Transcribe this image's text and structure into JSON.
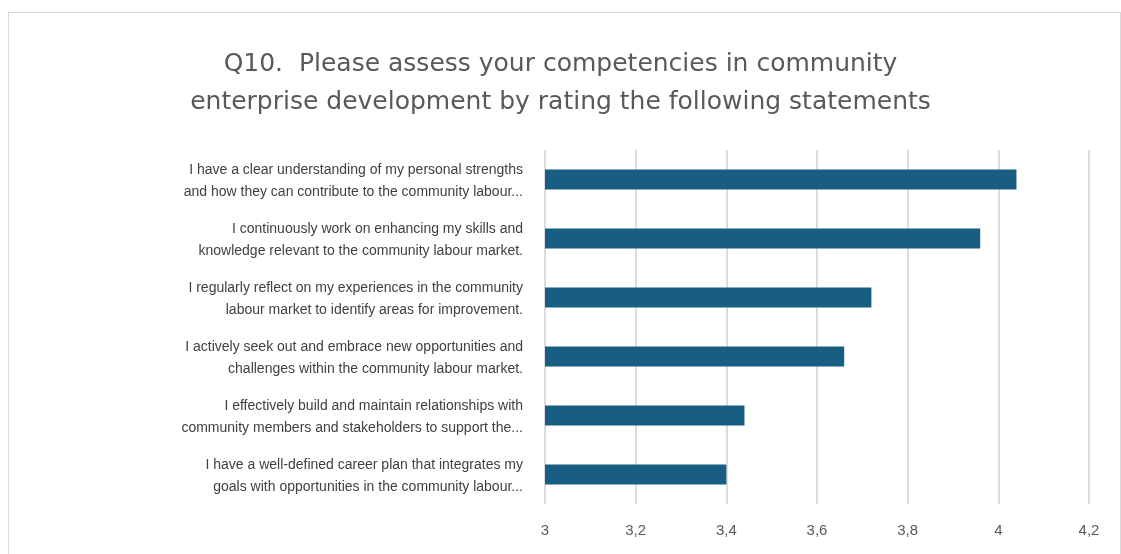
{
  "chart_data": {
    "type": "bar",
    "orientation": "horizontal",
    "title": "Q10.  Please assess your competencies in community\nenterprise development by rating the following statements",
    "categories": [
      "I have a clear understanding of my personal strengths\nand how they can contribute to the community labour...",
      "I continuously work on enhancing my skills and\nknowledge relevant to the community labour market.",
      "I regularly reflect on my experiences in the community\nlabour market to identify areas for improvement.",
      "I actively seek out and embrace new opportunities and\nchallenges within the community labour market.",
      "I effectively build and maintain relationships with\ncommunity members and stakeholders to support the...",
      "I have a well-defined career plan that integrates my\ngoals with opportunities in the community labour..."
    ],
    "values": [
      4.04,
      3.96,
      3.72,
      3.66,
      3.44,
      3.4
    ],
    "color": "#175e82",
    "xlim": [
      3,
      4.2
    ],
    "xticks": [
      3,
      {
        "value": 3.2,
        "label": "3,2"
      },
      {
        "value": 3.4,
        "label": "3,4"
      },
      {
        "value": 3.6,
        "label": "3,6"
      },
      {
        "value": 3.8,
        "label": "3,8"
      },
      4,
      {
        "value": 4.2,
        "label": "4,2"
      }
    ],
    "grid": "x"
  }
}
